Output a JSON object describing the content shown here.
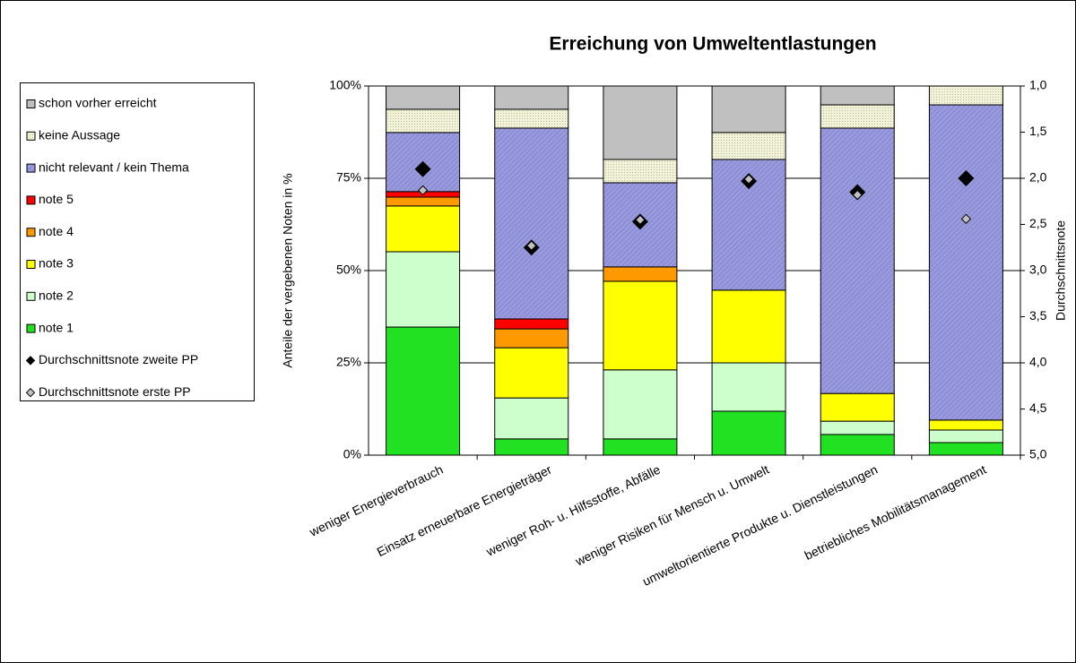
{
  "chart_data": {
    "type": "stacked_bar",
    "title": "Erreichung von Umweltentlastungen",
    "ylabel": "Anteile der vergebenen Noten in %",
    "y2label": "Durchschnittsnote",
    "categories": [
      "weniger Energieverbrauch",
      "Einsatz erneuerbare Energieträger",
      "weniger Roh- u. Hilfsstoffe, Abfälle",
      "weniger Risiken für Mensch u. Umwelt",
      "umweltorientierte Produkte u. Dienstleistungen",
      "betriebliches Mobilitätsmanagement"
    ],
    "series": [
      {
        "name": "note 1",
        "color": "#22e022",
        "values": [
          34.7,
          4.4,
          4.4,
          11.9,
          5.6,
          3.4
        ]
      },
      {
        "name": "note 2",
        "color": "#ccffcc",
        "values": [
          20.4,
          11.1,
          18.7,
          13.1,
          3.6,
          3.4
        ]
      },
      {
        "name": "note 3",
        "color": "#ffff00",
        "values": [
          12.4,
          13.6,
          24.0,
          19.7,
          7.5,
          2.7
        ]
      },
      {
        "name": "note 4",
        "color": "#ff9900",
        "values": [
          2.4,
          5.1,
          3.9,
          0,
          0,
          0
        ]
      },
      {
        "name": "note 5",
        "color": "#ff0000",
        "values": [
          1.5,
          2.7,
          0,
          0,
          0,
          0
        ]
      },
      {
        "name": "nicht relevant / kein Thema",
        "color": "#9999dd",
        "values": [
          16.0,
          51.7,
          22.8,
          35.4,
          71.9,
          85.4
        ]
      },
      {
        "name": "keine Aussage",
        "color": "#eeeecc",
        "values": [
          6.3,
          5.1,
          6.3,
          7.3,
          6.3,
          5.1
        ]
      },
      {
        "name": "schon vorher erreicht",
        "color": "#c0c0c0",
        "values": [
          6.3,
          6.3,
          19.9,
          12.6,
          5.1,
          0
        ]
      },
      {
        "name": "Durchschnittsnote zweite PP",
        "type": "scatter",
        "axis": "y2",
        "color": "#000000",
        "values": [
          1.9,
          2.75,
          2.47,
          2.03,
          2.15,
          2.0
        ]
      },
      {
        "name": "Durchschnittsnote erste PP",
        "type": "scatter",
        "axis": "y2",
        "color": "#c0c0c0",
        "values": [
          2.13,
          2.73,
          2.45,
          2.01,
          2.18,
          2.44
        ]
      }
    ],
    "ylim": [
      0,
      100
    ],
    "yticks": [
      {
        "value": 0,
        "label": "0%"
      },
      {
        "value": 25,
        "label": "25%"
      },
      {
        "value": 50,
        "label": "50%"
      },
      {
        "value": 75,
        "label": "75%"
      },
      {
        "value": 100,
        "label": "100%"
      }
    ],
    "y2lim": [
      5,
      1
    ],
    "y2ticks": [
      {
        "value": 1,
        "label": "1,0"
      },
      {
        "value": 1.5,
        "label": "1,5"
      },
      {
        "value": 2,
        "label": "2,0"
      },
      {
        "value": 2.5,
        "label": "2,5"
      },
      {
        "value": 3,
        "label": "3,0"
      },
      {
        "value": 3.5,
        "label": "3,5"
      },
      {
        "value": 4,
        "label": "4,0"
      },
      {
        "value": 4.5,
        "label": "4,5"
      },
      {
        "value": 5,
        "label": "5,0"
      }
    ],
    "grid": true,
    "legend": "left"
  }
}
